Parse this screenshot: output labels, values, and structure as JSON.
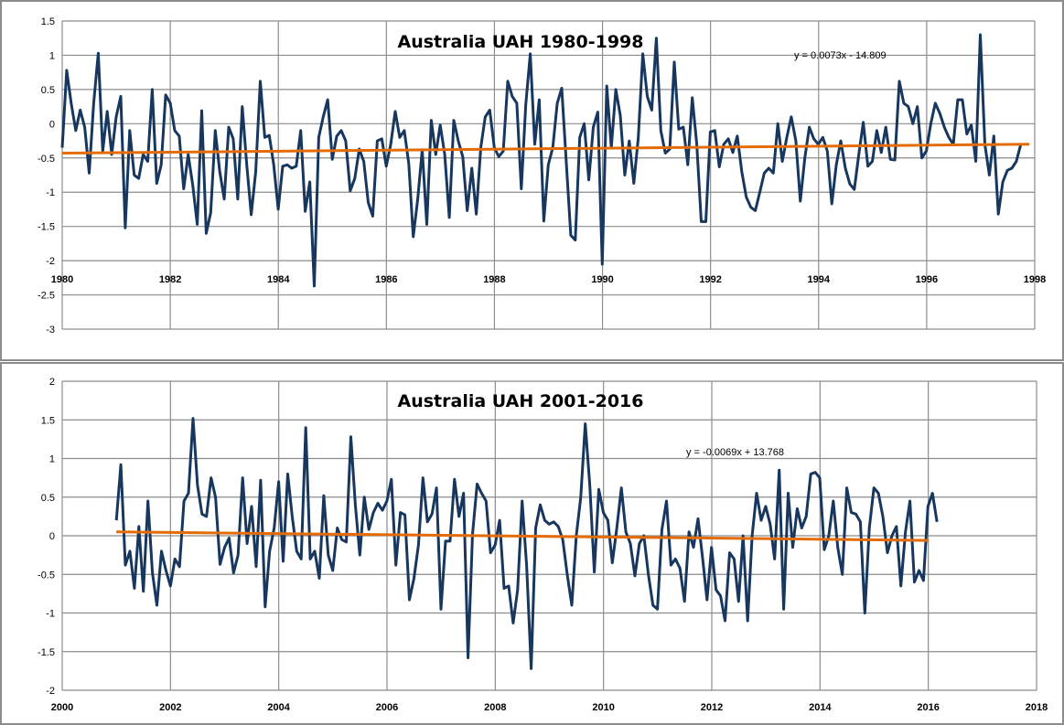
{
  "chart_data": [
    {
      "type": "line",
      "title": "Australia UAH  1980-1998",
      "xlabel": "",
      "ylabel": "",
      "xlim": [
        1980,
        1998
      ],
      "ylim": [
        -3,
        1.5
      ],
      "x_ticks": [
        "1980",
        "1982",
        "1984",
        "1986",
        "1988",
        "1990",
        "1992",
        "1994",
        "1996",
        "1998"
      ],
      "y_ticks": [
        "1.5",
        "1",
        "0.5",
        "0",
        "-0.5",
        "-1",
        "-1.5",
        "-2",
        "-2.5",
        "-3"
      ],
      "x_axis_crosses": -2,
      "grid": true,
      "series": [
        {
          "name": "Australia UAH",
          "color": "#17375e",
          "x_start": 1980.0,
          "x_step": 0.0833,
          "values": [
            -0.35,
            0.78,
            0.3,
            -0.1,
            0.2,
            -0.05,
            -0.72,
            0.3,
            1.03,
            -0.4,
            0.18,
            -0.45,
            0.1,
            0.4,
            -1.52,
            -0.1,
            -0.75,
            -0.8,
            -0.45,
            -0.55,
            0.5,
            -0.87,
            -0.6,
            0.42,
            0.3,
            -0.1,
            -0.18,
            -0.95,
            -0.45,
            -0.9,
            -1.47,
            0.19,
            -1.6,
            -1.3,
            -0.1,
            -0.7,
            -1.1,
            -0.05,
            -0.22,
            -1.1,
            0.25,
            -0.6,
            -1.33,
            -0.7,
            0.62,
            -0.2,
            -0.17,
            -0.6,
            -1.25,
            -0.62,
            -0.6,
            -0.65,
            -0.62,
            -0.1,
            -1.28,
            -0.85,
            -2.37,
            -0.2,
            0.1,
            0.35,
            -0.52,
            -0.18,
            -0.1,
            -0.25,
            -0.98,
            -0.8,
            -0.37,
            -0.55,
            -1.15,
            -1.35,
            -0.25,
            -0.22,
            -0.62,
            -0.3,
            0.18,
            -0.2,
            -0.1,
            -0.58,
            -1.65,
            -1.1,
            -0.38,
            -1.47,
            0.05,
            -0.45,
            -0.02,
            -0.45,
            -1.37,
            0.05,
            -0.25,
            -0.48,
            -1.27,
            -0.65,
            -1.32,
            -0.35,
            0.1,
            0.2,
            -0.35,
            -0.48,
            -0.4,
            0.62,
            0.4,
            0.3,
            -0.95,
            0.28,
            1.02,
            -0.3,
            0.35,
            -1.42,
            -0.6,
            -0.35,
            0.3,
            0.52,
            -0.57,
            -1.63,
            -1.7,
            -0.2,
            0.0,
            -0.82,
            -0.05,
            0.17,
            -2.05,
            0.55,
            -0.35,
            0.5,
            0.12,
            -0.75,
            -0.25,
            -0.87,
            -0.2,
            1.02,
            0.4,
            0.2,
            1.25,
            -0.1,
            -0.43,
            -0.37,
            0.9,
            -0.08,
            -0.05,
            -0.6,
            0.38,
            -0.3,
            -1.43,
            -1.43,
            -0.12,
            -0.1,
            -0.63,
            -0.3,
            -0.22,
            -0.42,
            -0.18,
            -0.7,
            -1.07,
            -1.22,
            -1.27,
            -1.0,
            -0.72,
            -0.65,
            -0.72,
            0.0,
            -0.55,
            -0.2,
            0.1,
            -0.25,
            -1.13,
            -0.5,
            -0.05,
            -0.22,
            -0.3,
            -0.2,
            -0.4,
            -1.17,
            -0.6,
            -0.25,
            -0.65,
            -0.88,
            -0.96,
            -0.45,
            0.02,
            -0.62,
            -0.55,
            -0.1,
            -0.42,
            -0.05,
            -0.52,
            -0.53,
            0.62,
            0.3,
            0.25,
            0.0,
            0.25,
            -0.5,
            -0.4,
            0.0,
            0.3,
            0.15,
            -0.05,
            -0.2,
            -0.3,
            0.35,
            0.35,
            -0.15,
            -0.02,
            -0.55,
            1.3,
            -0.3,
            -0.75,
            -0.18,
            -1.32,
            -0.85,
            -0.68,
            -0.65,
            -0.55,
            -0.3
          ]
        },
        {
          "name": "Linear trend",
          "color": "#e36c09",
          "x": [
            1980.0,
            1997.9
          ],
          "values": [
            -0.43,
            -0.3
          ]
        }
      ],
      "annotations": [
        "y = 0.0073x - 14.809"
      ]
    },
    {
      "type": "line",
      "title": "Australia UAH  2001-2016",
      "xlabel": "",
      "ylabel": "",
      "xlim": [
        2000,
        2018
      ],
      "ylim": [
        -2,
        2
      ],
      "x_ticks": [
        "2000",
        "2002",
        "2004",
        "2006",
        "2008",
        "2010",
        "2012",
        "2014",
        "2016",
        "2018"
      ],
      "y_ticks": [
        "2",
        "1.5",
        "1",
        "0.5",
        "0",
        "-0.5",
        "-1",
        "-1.5",
        "-2"
      ],
      "x_axis_crosses": -2,
      "grid": true,
      "series": [
        {
          "name": "Australia UAH",
          "color": "#17375e",
          "x_start": 2001.0,
          "x_step": 0.0833,
          "values": [
            0.2,
            0.92,
            -0.38,
            -0.2,
            -0.68,
            0.12,
            -0.72,
            0.45,
            -0.48,
            -0.9,
            -0.2,
            -0.45,
            -0.65,
            -0.3,
            -0.4,
            0.45,
            0.55,
            1.52,
            0.65,
            0.28,
            0.25,
            0.75,
            0.5,
            -0.37,
            -0.15,
            -0.03,
            -0.48,
            -0.25,
            0.75,
            -0.1,
            0.38,
            -0.4,
            0.72,
            -0.92,
            -0.2,
            0.1,
            0.7,
            -0.33,
            0.8,
            0.25,
            -0.2,
            -0.3,
            1.4,
            -0.3,
            -0.2,
            -0.55,
            0.52,
            -0.25,
            -0.45,
            0.1,
            -0.05,
            -0.08,
            1.28,
            0.4,
            -0.25,
            0.5,
            0.08,
            0.3,
            0.42,
            0.33,
            0.45,
            0.73,
            -0.38,
            0.3,
            0.27,
            -0.83,
            -0.55,
            -0.12,
            0.75,
            0.18,
            0.28,
            0.62,
            -0.95,
            -0.07,
            -0.07,
            0.73,
            0.25,
            0.55,
            -1.58,
            0.02,
            0.67,
            0.55,
            0.45,
            -0.22,
            -0.12,
            0.2,
            -0.68,
            -0.65,
            -1.13,
            -0.7,
            0.45,
            -0.4,
            -1.72,
            0.1,
            0.4,
            0.2,
            0.15,
            0.18,
            0.12,
            -0.05,
            -0.5,
            -0.9,
            0.0,
            0.5,
            1.45,
            0.65,
            -0.47,
            0.6,
            0.3,
            0.2,
            -0.35,
            0.1,
            0.62,
            0.05,
            -0.1,
            -0.52,
            -0.1,
            0.0,
            -0.5,
            -0.9,
            -0.95,
            0.08,
            0.45,
            -0.38,
            -0.3,
            -0.42,
            -0.85,
            0.05,
            -0.15,
            0.22,
            -0.28,
            -0.83,
            -0.15,
            -0.7,
            -0.78,
            -1.1,
            -0.22,
            -0.3,
            -0.85,
            0.0,
            -1.1,
            0.0,
            0.55,
            0.2,
            0.38,
            0.15,
            -0.3,
            0.85,
            -0.95,
            0.55,
            -0.15,
            0.35,
            0.1,
            0.25,
            0.8,
            0.82,
            0.75,
            -0.18,
            0.0,
            0.45,
            -0.15,
            -0.5,
            0.62,
            0.3,
            0.28,
            0.18,
            -1.0,
            0.1,
            0.62,
            0.55,
            0.25,
            -0.22,
            0.0,
            0.12,
            -0.65,
            0.05,
            0.45,
            -0.6,
            -0.45,
            -0.58,
            0.38,
            0.55,
            0.18
          ]
        },
        {
          "name": "Linear trend",
          "color": "#e36c09",
          "x": [
            2001.0,
            2016.0
          ],
          "values": [
            0.05,
            -0.06
          ]
        }
      ],
      "annotations": [
        "y = -0.0069x + 13.768"
      ]
    }
  ]
}
